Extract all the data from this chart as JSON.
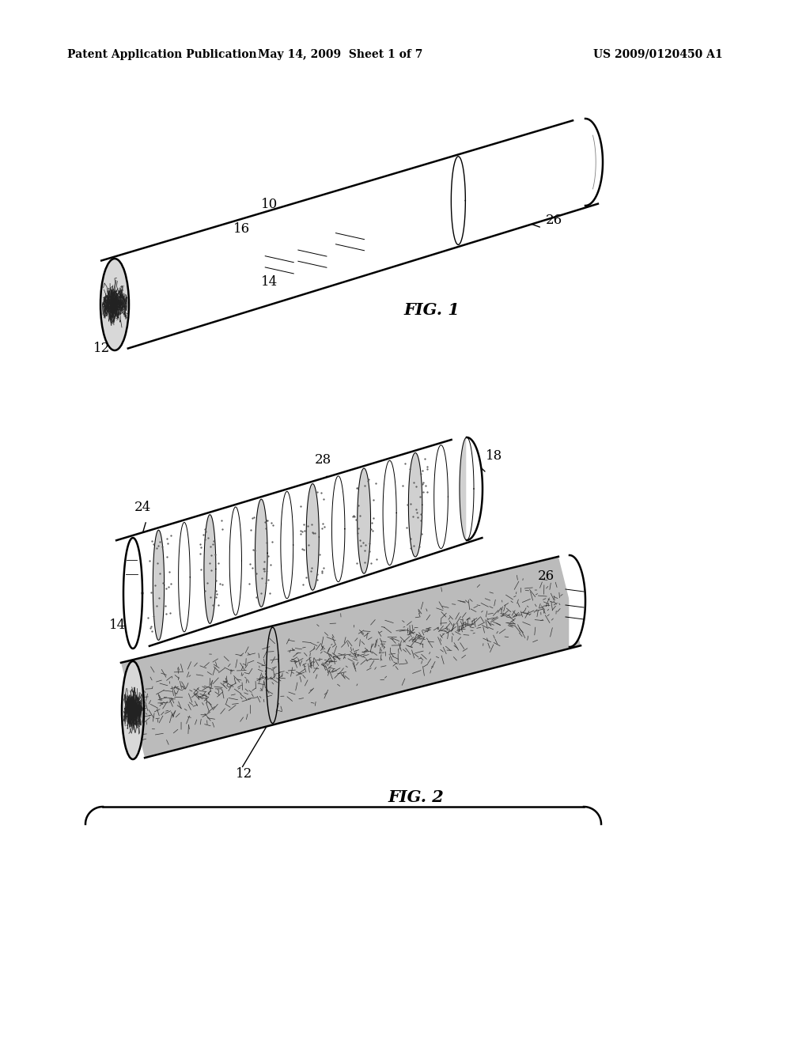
{
  "bg_color": "#ffffff",
  "line_color": "#000000",
  "header_left": "Patent Application Publication",
  "header_mid": "May 14, 2009  Sheet 1 of 7",
  "header_right": "US 2009/0120450 A1",
  "fig1_label": "FIG. 1",
  "fig2_label": "FIG. 2"
}
